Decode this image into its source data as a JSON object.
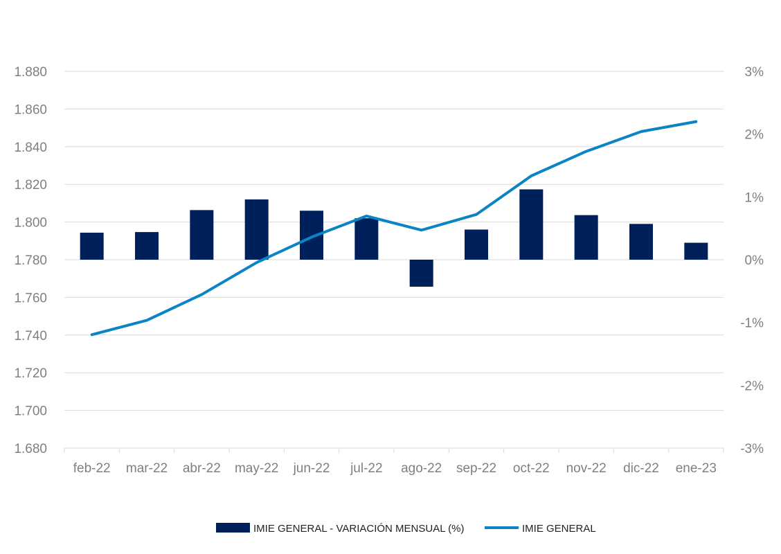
{
  "chart_data": {
    "type": "bar+line",
    "title": "",
    "categories": [
      "feb-22",
      "mar-22",
      "abr-22",
      "may-22",
      "jun-22",
      "jul-22",
      "ago-22",
      "sep-22",
      "oct-22",
      "nov-22",
      "dic-22",
      "ene-23"
    ],
    "series": [
      {
        "name": "IMIE GENERAL - VARIACIÓN MENSUAL (%)",
        "type": "bar",
        "axis": "right",
        "values": [
          0.43,
          0.44,
          0.79,
          0.96,
          0.78,
          0.66,
          -0.43,
          0.48,
          1.12,
          0.71,
          0.57,
          0.27
        ]
      },
      {
        "name": "IMIE GENERAL",
        "type": "line",
        "axis": "left",
        "values": [
          1740.2,
          1747.8,
          1761.5,
          1778.5,
          1792.0,
          1803.2,
          1795.7,
          1804.0,
          1824.5,
          1837.5,
          1848.0,
          1853.3
        ]
      }
    ],
    "left_axis": {
      "ylim": [
        1680,
        1880
      ],
      "ticks": [
        1680,
        1700,
        1720,
        1740,
        1760,
        1780,
        1800,
        1820,
        1840,
        1860,
        1880
      ],
      "tick_labels": [
        "1.680",
        "1.700",
        "1.720",
        "1.740",
        "1.760",
        "1.780",
        "1.800",
        "1.820",
        "1.840",
        "1.860",
        "1.880"
      ]
    },
    "right_axis": {
      "ylim": [
        -3,
        3
      ],
      "ticks": [
        -3,
        -2,
        -1,
        0,
        1,
        2,
        3
      ],
      "tick_labels": [
        "-3%",
        "-2%",
        "-1%",
        "0%",
        "1%",
        "2%",
        "3%"
      ]
    },
    "grid": true,
    "legend_position": "bottom",
    "colors": {
      "bar": "#00205b",
      "line": "#0a84c4",
      "grid": "#d9d9d9",
      "tick_text": "#7f7f7f"
    }
  }
}
